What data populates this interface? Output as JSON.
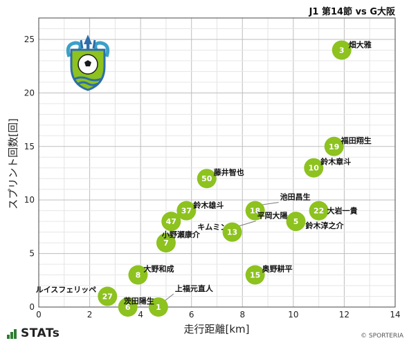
{
  "chart_data": {
    "type": "scatter",
    "title": "J1 第14節 vs G大阪",
    "xlabel": "走行距離[km]",
    "ylabel": "スプリント回数[回]",
    "xlim": [
      0,
      14
    ],
    "ylim": [
      0,
      27
    ],
    "xticks": [
      0,
      2,
      4,
      6,
      8,
      10,
      12,
      14
    ],
    "yticks": [
      0,
      5,
      10,
      15,
      20,
      25
    ],
    "grid": true,
    "marker_color": "#8dc21f",
    "points": [
      {
        "num": "3",
        "name": "畑大雅",
        "x": 11.9,
        "y": 24
      },
      {
        "num": "19",
        "name": "福田翔生",
        "x": 11.6,
        "y": 15
      },
      {
        "num": "10",
        "name": "鈴木章斗",
        "x": 10.8,
        "y": 13
      },
      {
        "num": "50",
        "name": "藤井智也",
        "x": 6.6,
        "y": 12
      },
      {
        "num": "37",
        "name": "鈴木雄斗",
        "x": 5.8,
        "y": 9
      },
      {
        "num": "18",
        "name": "池田昌生",
        "x": 8.5,
        "y": 9
      },
      {
        "num": "22",
        "name": "大岩一貴",
        "x": 11.0,
        "y": 9
      },
      {
        "num": "47",
        "name": "キムミンテ",
        "x": 5.2,
        "y": 8
      },
      {
        "num": "5",
        "name": "鈴木淳之介",
        "x": 10.1,
        "y": 8
      },
      {
        "num": "13",
        "name": "平岡大陽",
        "x": 7.6,
        "y": 7
      },
      {
        "num": "7",
        "name": "小野瀬康介",
        "x": 5.0,
        "y": 6
      },
      {
        "num": "8",
        "name": "大野和成",
        "x": 3.9,
        "y": 3
      },
      {
        "num": "15",
        "name": "奥野耕平",
        "x": 8.5,
        "y": 3
      },
      {
        "num": "27",
        "name": "ルイスフェリッペ",
        "x": 2.7,
        "y": 1
      },
      {
        "num": "1",
        "name": "上福元直人",
        "x": 4.7,
        "y": 0
      },
      {
        "num": "6",
        "name": "茨田陽生",
        "x": 3.5,
        "y": 0
      }
    ]
  },
  "brand": {
    "name": "STATs",
    "logo_icon": "bellmare-crest-icon"
  },
  "copyright": "© SPORTERIA"
}
